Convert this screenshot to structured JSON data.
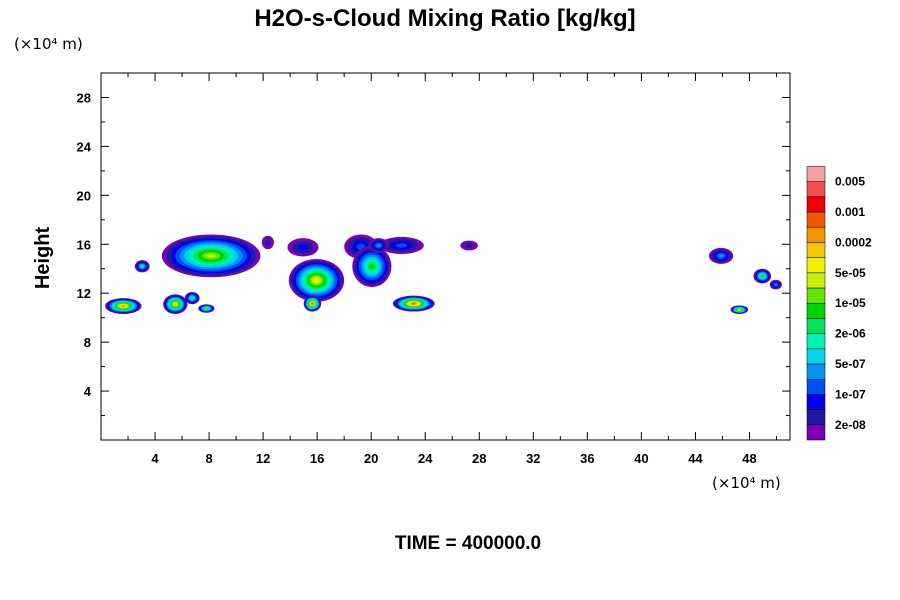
{
  "chart_data": {
    "type": "heatmap",
    "title": "H2O-s-Cloud Mixing Ratio [kg/kg]",
    "ylabel": "Height",
    "x_unit": "(×10⁴ m)",
    "y_unit": "(×10⁴ m)",
    "footer": "TIME = 400000.0",
    "xlim": [
      0,
      51
    ],
    "ylim": [
      0,
      30
    ],
    "x_ticks": [
      4,
      8,
      12,
      16,
      20,
      24,
      28,
      32,
      36,
      40,
      44,
      48
    ],
    "y_ticks": [
      4,
      8,
      12,
      16,
      20,
      24,
      28
    ],
    "grid": false,
    "legend_placement": "right",
    "colorbar": {
      "colors": [
        "#7a00b4",
        "#1c1ca0",
        "#0000f0",
        "#0050f0",
        "#0096f0",
        "#00d2f0",
        "#00f0b4",
        "#00e65a",
        "#00d200",
        "#64e600",
        "#c8f000",
        "#f0f000",
        "#f0c800",
        "#f09600",
        "#f05a00",
        "#f00000",
        "#f05050",
        "#f5a0a0"
      ],
      "labels": [
        "2e-08",
        "1e-07",
        "5e-07",
        "2e-06",
        "1e-05",
        "5e-05",
        "0.0002",
        "0.001",
        "0.005"
      ],
      "label_steps": [
        1,
        3,
        5,
        7,
        9,
        11,
        13,
        15,
        17
      ]
    },
    "regions": [
      {
        "x_range": [
          4.5,
          11.8
        ],
        "y_range": [
          13.3,
          16.8
        ],
        "peak_level": 10
      },
      {
        "x_range": [
          2.5,
          3.6
        ],
        "y_range": [
          13.7,
          14.7
        ],
        "peak_level": 6
      },
      {
        "x_range": [
          11.9,
          12.8
        ],
        "y_range": [
          15.6,
          16.7
        ],
        "peak_level": 1
      },
      {
        "x_range": [
          13.8,
          16.1
        ],
        "y_range": [
          15.0,
          16.5
        ],
        "peak_level": 2
      },
      {
        "x_range": [
          13.9,
          18.0
        ],
        "y_range": [
          11.3,
          14.8
        ],
        "peak_level": 11
      },
      {
        "x_range": [
          18.0,
          20.5
        ],
        "y_range": [
          14.8,
          16.8
        ],
        "peak_level": 3
      },
      {
        "x_range": [
          18.6,
          21.5
        ],
        "y_range": [
          12.5,
          15.9
        ],
        "peak_level": 8
      },
      {
        "x_range": [
          20.6,
          23.9
        ],
        "y_range": [
          15.2,
          16.6
        ],
        "peak_level": 3
      },
      {
        "x_range": [
          19.8,
          21.3
        ],
        "y_range": [
          15.3,
          16.5
        ],
        "peak_level": 4
      },
      {
        "x_range": [
          26.6,
          27.9
        ],
        "y_range": [
          15.5,
          16.3
        ],
        "peak_level": 1
      },
      {
        "x_range": [
          15.0,
          16.3
        ],
        "y_range": [
          10.5,
          11.8
        ],
        "peak_level": 14
      },
      {
        "x_range": [
          21.6,
          24.7
        ],
        "y_range": [
          10.5,
          11.8
        ],
        "peak_level": 14
      },
      {
        "x_range": [
          4.6,
          6.4
        ],
        "y_range": [
          10.3,
          11.9
        ],
        "peak_level": 12
      },
      {
        "x_range": [
          6.2,
          7.3
        ],
        "y_range": [
          11.1,
          12.1
        ],
        "peak_level": 7
      },
      {
        "x_range": [
          0.3,
          3.0
        ],
        "y_range": [
          10.3,
          11.6
        ],
        "peak_level": 13
      },
      {
        "x_range": [
          7.2,
          8.4
        ],
        "y_range": [
          10.4,
          11.1
        ],
        "peak_level": 9
      },
      {
        "x_range": [
          45.0,
          46.8
        ],
        "y_range": [
          14.4,
          15.7
        ],
        "peak_level": 4
      },
      {
        "x_range": [
          48.3,
          49.6
        ],
        "y_range": [
          12.8,
          14.0
        ],
        "peak_level": 8
      },
      {
        "x_range": [
          49.5,
          50.4
        ],
        "y_range": [
          12.3,
          13.1
        ],
        "peak_level": 4
      },
      {
        "x_range": [
          46.6,
          47.9
        ],
        "y_range": [
          10.3,
          11.0
        ],
        "peak_level": 12
      }
    ]
  }
}
